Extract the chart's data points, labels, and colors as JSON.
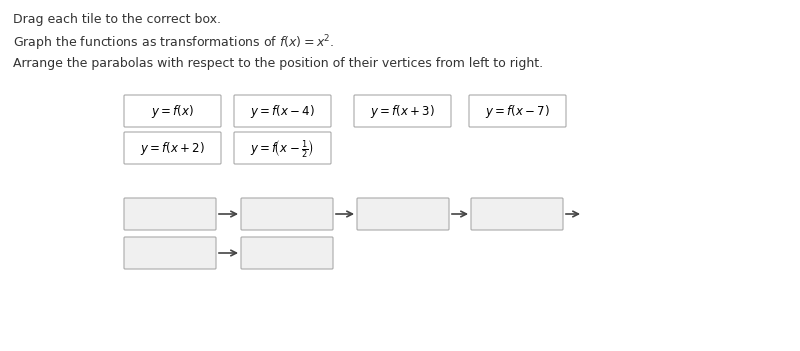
{
  "background_color": "#ffffff",
  "title_line1": "Drag each tile to the correct box.",
  "title_line2": "Graph the functions as transformations of $f(x) = x^2$.",
  "title_line3": "Arrange the parabolas with respect to the position of their vertices from left to right.",
  "tiles": [
    {
      "label": "$y = f(x)$",
      "row": 0,
      "col": 0
    },
    {
      "label": "$y = f(x-4)$",
      "row": 0,
      "col": 1
    },
    {
      "label": "$y = f(x+3)$",
      "row": 0,
      "col": 2
    },
    {
      "label": "$y = f(x-7)$",
      "row": 0,
      "col": 3
    },
    {
      "label": "$y = f(x+2)$",
      "row": 1,
      "col": 0
    },
    {
      "label": "$y = f\\left(x - \\frac{1}{2}\\right)$",
      "row": 1,
      "col": 1
    }
  ],
  "tile_box_color": "#ffffff",
  "tile_border_color": "#aaaaaa",
  "tile_text_color": "#000000",
  "answer_box_color": "#f0f0f0",
  "answer_border_color": "#aaaaaa",
  "arrow_color": "#444444",
  "font_size_header": 9,
  "font_size_tile": 9,
  "font_size_arrow": 11
}
